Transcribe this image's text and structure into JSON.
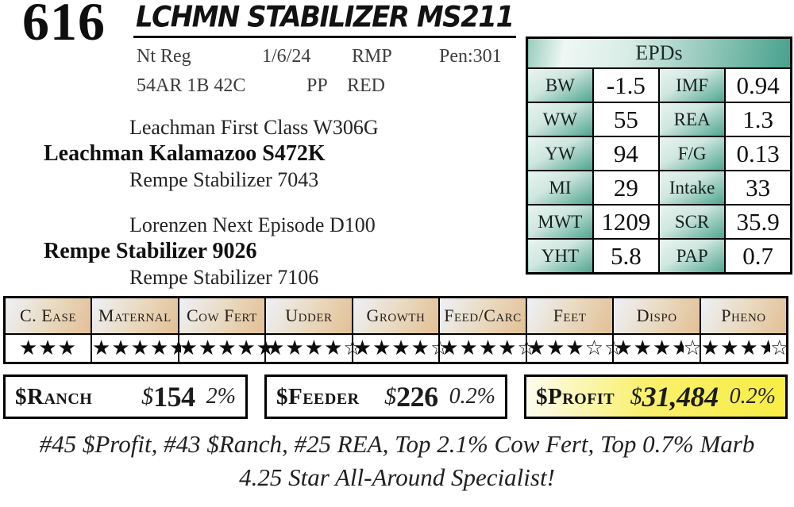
{
  "lot": {
    "number": "616",
    "title": "LCHMN STABILIZER MS211"
  },
  "info": {
    "row1": [
      "Nt Reg",
      "1/6/24",
      "RMP",
      "Pen:301"
    ],
    "row2": [
      "54AR 1B 42C",
      "PP",
      "RED"
    ]
  },
  "pedigree": {
    "sire": {
      "top": "Leachman First Class W306G",
      "main": "Leachman Kalamazoo S472K",
      "bottom": "Rempe Stabilizer 7043"
    },
    "dam": {
      "top": "Lorenzen Next Episode D100",
      "main": "Rempe Stabilizer 9026",
      "bottom": "Rempe Stabilizer 7106"
    }
  },
  "epds": {
    "header": "EPDs",
    "rows": [
      {
        "label1": "BW",
        "value1": "-1.5",
        "label2": "IMF",
        "value2": "0.94"
      },
      {
        "label1": "WW",
        "value1": "55",
        "label2": "REA",
        "value2": "1.3"
      },
      {
        "label1": "YW",
        "value1": "94",
        "label2": "F/G",
        "value2": "0.13"
      },
      {
        "label1": "MI",
        "value1": "29",
        "label2": "Intake",
        "value2": "33"
      },
      {
        "label1": "MWT",
        "value1": "1209",
        "label2": "SCR",
        "value2": "35.9"
      },
      {
        "label1": "YHT",
        "value1": "5.8",
        "label2": "PAP",
        "value2": "0.7"
      }
    ]
  },
  "ratings": {
    "columns": [
      {
        "label": "C. Ease",
        "full": 3,
        "half": 0,
        "empty": 0
      },
      {
        "label": "Maternal",
        "full": 4,
        "half": 1,
        "empty": 0
      },
      {
        "label": "Cow Fert",
        "full": 5,
        "half": 0,
        "empty": 0
      },
      {
        "label": "Udder",
        "full": 4,
        "half": 0,
        "empty": 1
      },
      {
        "label": "Growth",
        "full": 4,
        "half": 0,
        "empty": 1
      },
      {
        "label": "Feed/Carc",
        "full": 4,
        "half": 0,
        "empty": 1
      },
      {
        "label": "Feet",
        "full": 3,
        "half": 0,
        "empty": 2
      },
      {
        "label": "Dispo",
        "full": 3,
        "half": 1,
        "empty": 1
      },
      {
        "label": "Pheno",
        "full": 3,
        "half": 1,
        "empty": 1
      }
    ]
  },
  "indexes": [
    {
      "id": "ranch",
      "label": "$Ranch",
      "value": "$154",
      "pct": "2%",
      "highlight": false
    },
    {
      "id": "feeder",
      "label": "$Feeder",
      "value": "$226",
      "pct": "0.2%",
      "highlight": false
    },
    {
      "id": "profit",
      "label": "$Profit",
      "value": "$31,484",
      "pct": "0.2%",
      "highlight": true
    }
  ],
  "footnotes": {
    "line1": "#45 $Profit, #43 $Ranch, #25 REA, Top 2.1% Cow Fert, Top 0.7% Marb",
    "line2": "4.25 Star All-Around Specialist!"
  },
  "glyphs": {
    "star_full": "★",
    "star_empty": "☆"
  },
  "colors": {
    "epd_teal": "#4fa68f",
    "epd_teal_light": "#e9f4f0",
    "ratings_tan": "#e2bf94",
    "ratings_blue_light": "#eef1f7",
    "profit_yellow": "#f8ee44",
    "star_color": "#0d0d0d"
  }
}
